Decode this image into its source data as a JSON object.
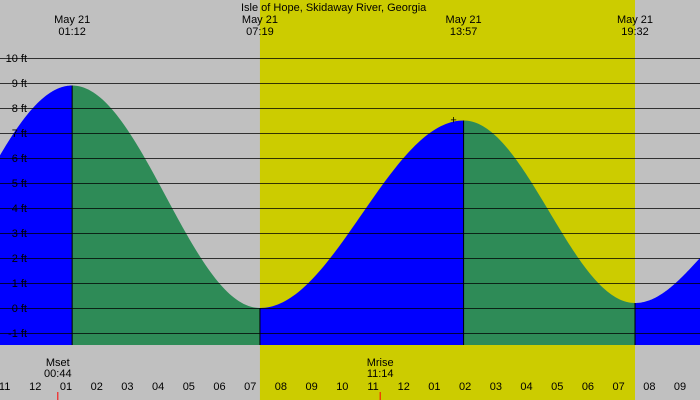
{
  "chart_data": {
    "type": "area",
    "title": "Isle of Hope, Skidaway River, Georgia",
    "unit_suffix": " ft",
    "ylim": [
      -2,
      11
    ],
    "y_ticks": [
      -1,
      0,
      1,
      2,
      3,
      4,
      5,
      6,
      7,
      8,
      9,
      10
    ],
    "x_hours_range": [
      -1.15,
      21.65
    ],
    "grid": "horizontal",
    "daylight": {
      "start_hour": 7.317,
      "end_hour": 19.533
    },
    "extremes": [
      {
        "type": "high",
        "date": "May 21",
        "time": "01:12",
        "hour": 1.2,
        "height": 8.9
      },
      {
        "type": "low",
        "date": "May 21",
        "time": "07:19",
        "hour": 7.317,
        "height": 0.0
      },
      {
        "type": "high",
        "date": "May 21",
        "time": "13:57",
        "hour": 13.95,
        "height": 7.5
      },
      {
        "type": "low",
        "date": "May 21",
        "time": "19:32",
        "hour": 19.533,
        "height": 0.2
      }
    ],
    "end_height": 2.0,
    "moon_events": [
      {
        "label": "Mset",
        "time": "00:44",
        "hour": 0.733
      },
      {
        "label": "Mrise",
        "time": "11:14",
        "hour": 11.233
      }
    ],
    "x_tick_labels": [
      {
        "label": "11",
        "hour": -1
      },
      {
        "label": "12",
        "hour": 0
      },
      {
        "label": "01",
        "hour": 1
      },
      {
        "label": "02",
        "hour": 2
      },
      {
        "label": "03",
        "hour": 3
      },
      {
        "label": "04",
        "hour": 4
      },
      {
        "label": "05",
        "hour": 5
      },
      {
        "label": "06",
        "hour": 6
      },
      {
        "label": "07",
        "hour": 7
      },
      {
        "label": "08",
        "hour": 8
      },
      {
        "label": "09",
        "hour": 9
      },
      {
        "label": "10",
        "hour": 10
      },
      {
        "label": "11",
        "hour": 11
      },
      {
        "label": "12",
        "hour": 12
      },
      {
        "label": "01",
        "hour": 13
      },
      {
        "label": "02",
        "hour": 14
      },
      {
        "label": "03",
        "hour": 15
      },
      {
        "label": "04",
        "hour": 16
      },
      {
        "label": "05",
        "hour": 17
      },
      {
        "label": "06",
        "hour": 18
      },
      {
        "label": "07",
        "hour": 19
      },
      {
        "label": "08",
        "hour": 20
      },
      {
        "label": "09",
        "hour": 21
      }
    ],
    "colors": {
      "night": "#c0c0c0",
      "day": "#cccc00",
      "rising": "#0000ff",
      "falling": "#2e8b57",
      "grid": "#000000",
      "moon_tick": "#ff0000"
    }
  }
}
